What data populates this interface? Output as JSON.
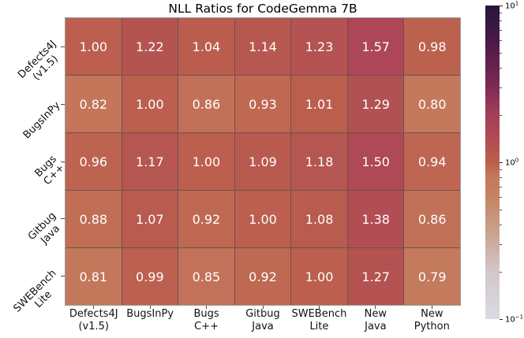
{
  "chart_data": {
    "type": "heatmap",
    "title": "NLL Ratios for CodeGemma 7B",
    "row_labels": [
      "Defects4J\n(v1.5)",
      "BugsInPy",
      "Bugs\nC++",
      "Gitbug\nJava",
      "SWEBench\nLite"
    ],
    "col_labels": [
      "Defects4J\n(v1.5)",
      "BugsInPy",
      "Bugs\nC++",
      "Gitbug\nJava",
      "SWEBench\nLite",
      "New\nJava",
      "New\nPython"
    ],
    "matrix": [
      [
        1.0,
        1.22,
        1.04,
        1.14,
        1.23,
        1.57,
        0.98
      ],
      [
        0.82,
        1.0,
        0.86,
        0.93,
        1.01,
        1.29,
        0.8
      ],
      [
        0.96,
        1.17,
        1.0,
        1.09,
        1.18,
        1.5,
        0.94
      ],
      [
        0.88,
        1.07,
        0.92,
        1.0,
        1.08,
        1.38,
        0.86
      ],
      [
        0.81,
        0.99,
        0.85,
        0.92,
        1.0,
        1.27,
        0.79
      ]
    ],
    "value_format_decimals": 2,
    "scale": "log10",
    "colorbar": {
      "min": 0.1,
      "max": 10,
      "major_ticks": [
        {
          "value": 10,
          "base": "10",
          "exp": "1"
        },
        {
          "value": 1,
          "base": "10",
          "exp": "0"
        },
        {
          "value": 0.1,
          "base": "10",
          "exp": "−1"
        }
      ],
      "minor_tick_values": [
        0.2,
        0.3,
        0.4,
        0.5,
        0.6,
        0.7,
        0.8,
        0.9,
        2,
        3,
        4,
        5,
        6,
        7,
        8,
        9
      ]
    },
    "colormap_stops": [
      [
        0.0,
        "#d8dbe4"
      ],
      [
        0.15,
        "#d3c7c9"
      ],
      [
        0.3,
        "#c79c84"
      ],
      [
        0.4,
        "#c5815f"
      ],
      [
        0.45,
        "#c47a5c"
      ],
      [
        0.5,
        "#bc5f4e"
      ],
      [
        0.55,
        "#b35251"
      ],
      [
        0.6,
        "#ad4656"
      ],
      [
        0.65,
        "#a23f58"
      ],
      [
        0.75,
        "#7b2951"
      ],
      [
        0.87,
        "#4e1b49"
      ],
      [
        1.0,
        "#271637"
      ]
    ],
    "cell_text_color": "#ffffff",
    "grid_line_color": "#6b5150",
    "outer_border_color": "#9c9c9c",
    "legend_position": "right",
    "grid": true
  }
}
